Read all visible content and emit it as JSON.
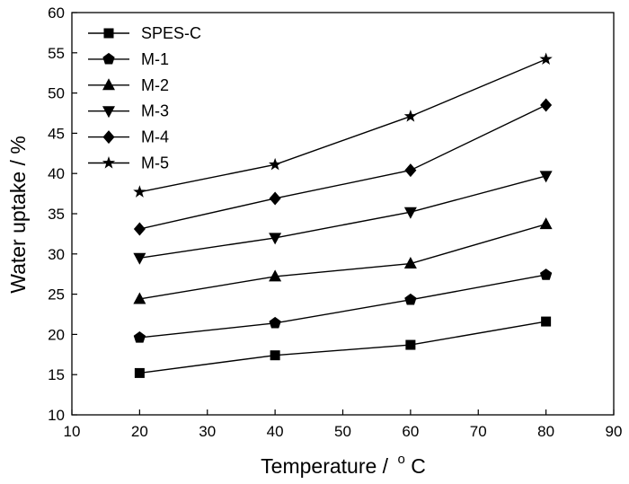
{
  "chart_data": {
    "type": "line",
    "xlabel": "Temperature / °C",
    "xlabel_main": "Temperature /",
    "xlabel_deg": "o",
    "xlabel_unit": "C",
    "ylabel": "Water uptake / %",
    "xlim": [
      10,
      90
    ],
    "ylim": [
      10,
      60
    ],
    "xticks": [
      10,
      20,
      30,
      40,
      50,
      60,
      70,
      80,
      90
    ],
    "yticks": [
      10,
      15,
      20,
      25,
      30,
      35,
      40,
      45,
      50,
      55,
      60
    ],
    "grid": false,
    "legend_position": "top-left",
    "x": [
      20,
      40,
      60,
      80
    ],
    "series": [
      {
        "name": "SPES-C",
        "marker": "square",
        "values": [
          15.2,
          17.4,
          18.7,
          21.6
        ]
      },
      {
        "name": "M-1",
        "marker": "pentagon",
        "values": [
          19.6,
          21.4,
          24.3,
          27.4
        ]
      },
      {
        "name": "M-2",
        "marker": "triangle-up",
        "values": [
          24.4,
          27.2,
          28.8,
          33.7
        ]
      },
      {
        "name": "M-3",
        "marker": "triangle-down",
        "values": [
          29.5,
          32.0,
          35.2,
          39.7
        ]
      },
      {
        "name": "M-4",
        "marker": "diamond",
        "values": [
          33.1,
          36.9,
          40.4,
          48.5
        ]
      },
      {
        "name": "M-5",
        "marker": "star",
        "values": [
          37.7,
          41.1,
          47.1,
          54.2
        ]
      }
    ]
  }
}
